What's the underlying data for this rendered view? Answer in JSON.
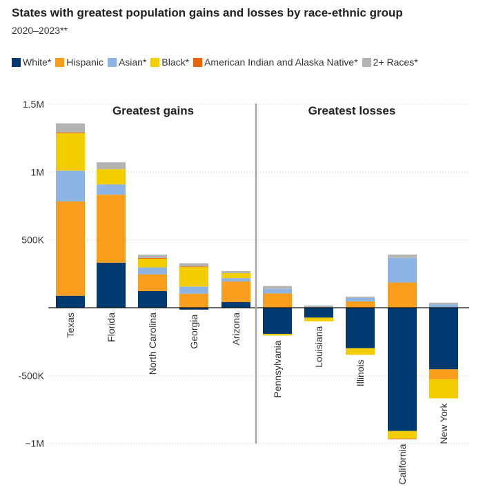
{
  "chart_data": {
    "type": "bar",
    "stacked": true,
    "title": "States with greatest population gains and losses by race-ethnic group",
    "subtitle": "2020–2023**",
    "xlabel": "",
    "ylabel": "",
    "ylim": [
      -1000000,
      1500000
    ],
    "yticks": [
      {
        "value": 1500000,
        "label": "1.5M"
      },
      {
        "value": 1000000,
        "label": "1M"
      },
      {
        "value": 500000,
        "label": "500K"
      },
      {
        "value": -500000,
        "label": "-500K"
      },
      {
        "value": -1000000,
        "label": "−1M"
      }
    ],
    "grid": true,
    "legend_position": "top",
    "sections": [
      {
        "label": "Greatest gains",
        "categories": 5
      },
      {
        "label": "Greatest losses",
        "categories": 5
      }
    ],
    "categories": [
      "Texas",
      "Florida",
      "North Carolina",
      "Georgia",
      "Arizona",
      "Pennsylvania",
      "Louisiana",
      "Illinois",
      "California",
      "New York"
    ],
    "series": [
      {
        "name": "White*",
        "color": "#003a70",
        "values": [
          88000,
          332000,
          122000,
          -14000,
          42000,
          -193000,
          -73000,
          -298000,
          -908000,
          -454000
        ]
      },
      {
        "name": "Hispanic",
        "color": "#f99d1c",
        "values": [
          695000,
          501000,
          124000,
          103000,
          151000,
          105000,
          0,
          47000,
          186000,
          -73000
        ]
      },
      {
        "name": "Asian*",
        "color": "#8db4e2",
        "values": [
          227000,
          76000,
          51000,
          53000,
          25000,
          33000,
          0,
          25000,
          181000,
          25000
        ]
      },
      {
        "name": "Black*",
        "color": "#f2cd00",
        "values": [
          277000,
          112000,
          66000,
          145000,
          37000,
          -12000,
          -27000,
          -49000,
          -56000,
          -141000
        ]
      },
      {
        "name": "American Indian and Alaska Native*",
        "color": "#e8650f",
        "values": [
          5000,
          0,
          3000,
          3000,
          0,
          0,
          0,
          0,
          -4000,
          0
        ]
      },
      {
        "name": "2+ Races*",
        "color": "#b3b3b3",
        "values": [
          66000,
          51000,
          25000,
          24000,
          15000,
          22000,
          17000,
          10000,
          25000,
          12000
        ]
      }
    ]
  }
}
